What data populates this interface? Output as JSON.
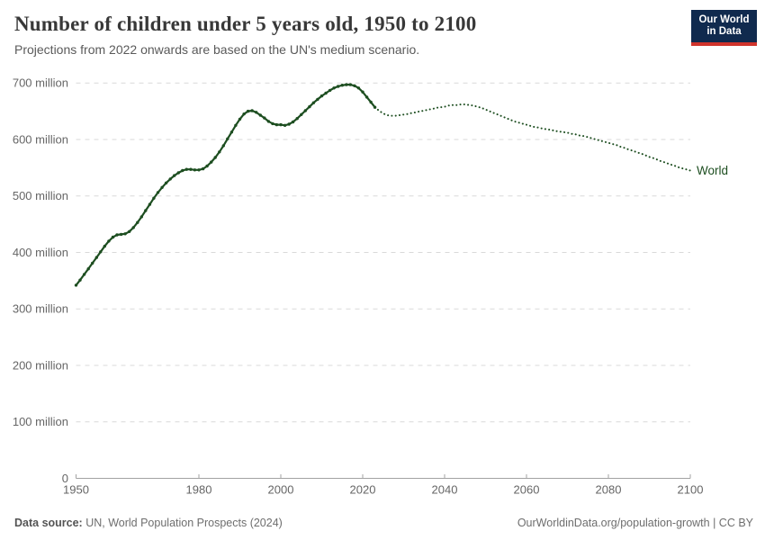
{
  "header": {
    "title": "Number of children under 5 years old, 1950 to 2100",
    "subtitle": "Projections from 2022 onwards are based on the UN's medium scenario.",
    "logo": {
      "line1": "Our World",
      "line2": "in Data"
    }
  },
  "footer": {
    "source_label": "Data source:",
    "source_text": " UN, World Population Prospects (2024)",
    "link_text": "OurWorldinData.org/population-growth | CC BY"
  },
  "colors": {
    "line": "#1d4e20",
    "grid": "#d9d9d9",
    "axis": "#a3a3a3",
    "tick_label": "#666666",
    "logo_bg": "#102a4e",
    "logo_accent": "#d0342c"
  },
  "chart_data": {
    "type": "line",
    "title": "Number of children under 5 years old, 1950 to 2100",
    "subtitle": "Projections from 2022 onwards are based on the UN's medium scenario.",
    "unit": "million",
    "entity": "World",
    "grid": true,
    "legend_position": "end-of-line-label",
    "xlim": [
      1950,
      2100
    ],
    "ylim_millions": [
      0,
      700
    ],
    "x_ticks": [
      1950,
      1980,
      2000,
      2020,
      2040,
      2060,
      2080,
      2100
    ],
    "y_ticks": [
      {
        "value": 0,
        "label": "0"
      },
      {
        "value": 100,
        "label": "100 million"
      },
      {
        "value": 200,
        "label": "200 million"
      },
      {
        "value": 300,
        "label": "300 million"
      },
      {
        "value": 400,
        "label": "400 million"
      },
      {
        "value": 500,
        "label": "500 million"
      },
      {
        "value": 600,
        "label": "600 million"
      },
      {
        "value": 700,
        "label": "700 million"
      }
    ],
    "series": [
      {
        "name": "World (observed, 1950-2023)",
        "style": "solid",
        "start_year": 1950,
        "values_millions": [
          342,
          351,
          361,
          371,
          381,
          391,
          401,
          411,
          420,
          427,
          431,
          432,
          433,
          437,
          444,
          453,
          463,
          474,
          485,
          496,
          506,
          515,
          523,
          530,
          536,
          541,
          545,
          547,
          547,
          546,
          546,
          548,
          553,
          560,
          568,
          578,
          589,
          601,
          613,
          625,
          636,
          645,
          650,
          651,
          648,
          643,
          638,
          632,
          628,
          626,
          626,
          625,
          627,
          631,
          637,
          644,
          651,
          658,
          665,
          671,
          677,
          682,
          687,
          691,
          694,
          696,
          697,
          697,
          695,
          691,
          684,
          675,
          666,
          657
        ]
      },
      {
        "name": "World (UN medium projection, 2023-2100)",
        "style": "dotted",
        "start_year": 2023,
        "values_millions": [
          657,
          651,
          646,
          643,
          642,
          642,
          643,
          644,
          645,
          647,
          648,
          650,
          651,
          653,
          654,
          656,
          657,
          658,
          660,
          661,
          661,
          662,
          662,
          661,
          660,
          658,
          656,
          653,
          650,
          647,
          644,
          641,
          638,
          635,
          632,
          630,
          628,
          626,
          624,
          622,
          621,
          619,
          618,
          617,
          615,
          614,
          613,
          612,
          610,
          609,
          607,
          606,
          604,
          602,
          600,
          598,
          596,
          594,
          592,
          590,
          587,
          585,
          582,
          580,
          577,
          575,
          572,
          569,
          567,
          564,
          561,
          559,
          556,
          554,
          551,
          549,
          547,
          545
        ]
      }
    ]
  }
}
